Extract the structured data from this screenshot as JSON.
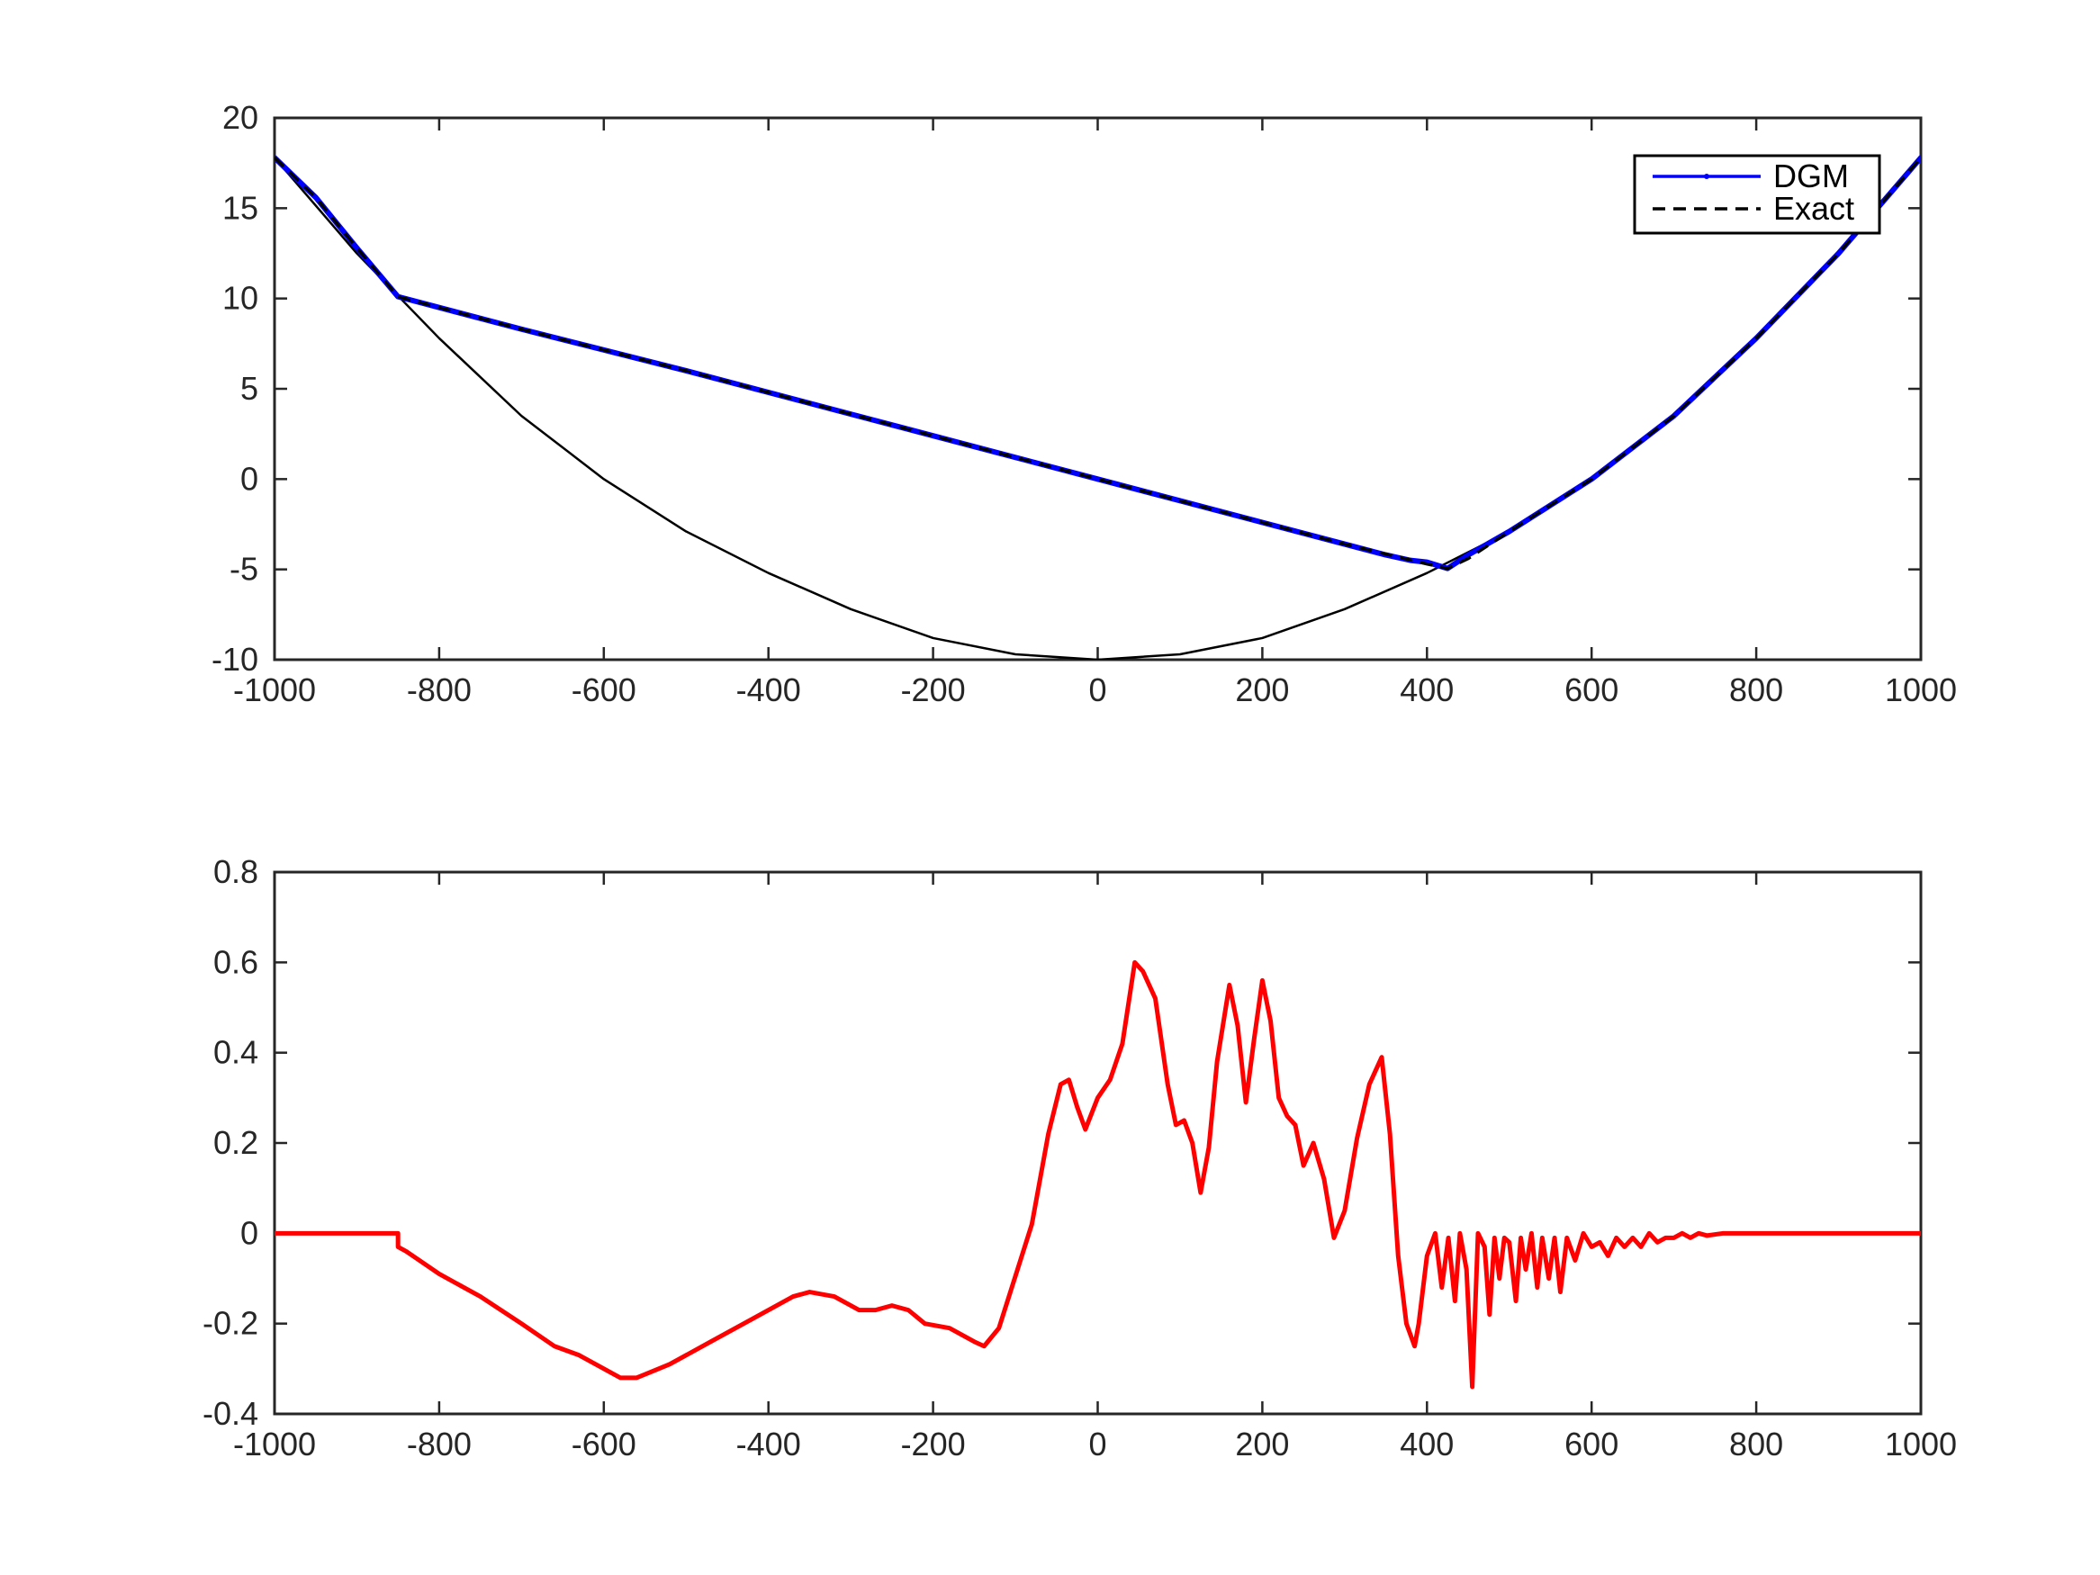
{
  "chart_data": [
    {
      "type": "line",
      "xlim": [
        -1000,
        1000
      ],
      "ylim": [
        -10,
        20
      ],
      "xticks": [
        "-1000",
        "-800",
        "-600",
        "-400",
        "-200",
        "0",
        "200",
        "400",
        "600",
        "800",
        "1000"
      ],
      "yticks": [
        "-10",
        "-5",
        "0",
        "5",
        "10",
        "15",
        "20"
      ],
      "xtick_values": [
        -1000,
        -800,
        -600,
        -400,
        -200,
        0,
        200,
        400,
        600,
        800,
        1000
      ],
      "ytick_values": [
        -10,
        -5,
        0,
        5,
        10,
        15,
        20
      ],
      "grid": false,
      "legend": {
        "location": "top-right",
        "entries": [
          "DGM",
          "Exact"
        ]
      },
      "series": [
        {
          "name": "DGM",
          "color": "#0000ff",
          "style": "solid",
          "x": [
            -1000,
            -950,
            -900,
            -850,
            -700,
            -500,
            -300,
            -100,
            0,
            100,
            200,
            300,
            350,
            380,
            400,
            425,
            450,
            500,
            600,
            700,
            800,
            900,
            1000
          ],
          "y": [
            17.8,
            15.6,
            12.8,
            10.1,
            8.3,
            6.0,
            3.6,
            1.2,
            0.0,
            -1.2,
            -2.4,
            -3.6,
            -4.2,
            -4.5,
            -4.6,
            -4.95,
            -4.2,
            -2.9,
            0.0,
            3.5,
            7.8,
            12.5,
            17.8
          ]
        },
        {
          "name": "Exact",
          "color": "#000000",
          "style": "dashed",
          "x": [
            -1000,
            -950,
            -900,
            -850,
            -700,
            -500,
            -300,
            -100,
            0,
            100,
            200,
            300,
            400,
            425,
            450,
            500,
            600,
            700,
            800,
            900,
            1000
          ],
          "y": [
            17.8,
            15.6,
            12.8,
            10.1,
            8.3,
            6.0,
            3.6,
            1.2,
            0.0,
            -1.2,
            -2.4,
            -3.6,
            -4.7,
            -4.95,
            -4.4,
            -2.9,
            0.0,
            3.5,
            7.8,
            12.5,
            17.8
          ]
        },
        {
          "color": "#000000",
          "style": "thin-solid",
          "x": [
            -1000,
            -900,
            -800,
            -700,
            -600,
            -500,
            -400,
            -300,
            -200,
            -100,
            0,
            100,
            200,
            300,
            400,
            500,
            600,
            700,
            800,
            900,
            1000
          ],
          "y": [
            17.8,
            12.5,
            7.8,
            3.5,
            0.0,
            -2.9,
            -5.2,
            -7.2,
            -8.8,
            -9.7,
            -10.0,
            -9.7,
            -8.8,
            -7.2,
            -5.2,
            -2.9,
            0.0,
            3.5,
            7.8,
            12.5,
            17.8
          ]
        }
      ]
    },
    {
      "type": "line",
      "xlim": [
        -1000,
        1000
      ],
      "ylim": [
        -0.4,
        0.8
      ],
      "xticks": [
        "-1000",
        "-800",
        "-600",
        "-400",
        "-200",
        "0",
        "200",
        "400",
        "600",
        "800",
        "1000"
      ],
      "yticks": [
        "-0.4",
        "-0.2",
        "0",
        "0.2",
        "0.4",
        "0.6",
        "0.8"
      ],
      "xtick_values": [
        -1000,
        -800,
        -600,
        -400,
        -200,
        0,
        200,
        400,
        600,
        800,
        1000
      ],
      "ytick_values": [
        -0.4,
        -0.2,
        0,
        0.2,
        0.4,
        0.6,
        0.8
      ],
      "grid": false,
      "series": [
        {
          "color": "#ff0000",
          "style": "solid",
          "x": [
            -1000,
            -850,
            -850,
            -840,
            -800,
            -750,
            -700,
            -660,
            -630,
            -600,
            -580,
            -560,
            -520,
            -470,
            -420,
            -370,
            -350,
            -320,
            -290,
            -270,
            -250,
            -230,
            -210,
            -180,
            -150,
            -138,
            -120,
            -80,
            -60,
            -45,
            -35,
            -25,
            -15,
            0,
            15,
            30,
            45,
            55,
            70,
            85,
            95,
            105,
            115,
            125,
            135,
            145,
            160,
            170,
            180,
            190,
            200,
            210,
            220,
            230,
            240,
            250,
            262,
            275,
            287,
            300,
            315,
            330,
            345,
            355,
            365,
            375,
            385,
            390,
            400,
            410,
            418,
            426,
            434,
            440,
            448,
            455,
            462,
            470,
            476,
            482,
            488,
            494,
            500,
            508,
            514,
            520,
            527,
            534,
            540,
            548,
            555,
            562,
            570,
            580,
            590,
            600,
            610,
            620,
            630,
            640,
            650,
            660,
            670,
            680,
            690,
            700,
            710,
            720,
            730,
            740,
            760,
            780,
            800,
            850,
            900,
            1000
          ],
          "y": [
            0.0,
            0.0,
            -0.03,
            -0.04,
            -0.09,
            -0.14,
            -0.2,
            -0.25,
            -0.27,
            -0.3,
            -0.32,
            -0.32,
            -0.29,
            -0.24,
            -0.19,
            -0.14,
            -0.13,
            -0.14,
            -0.17,
            -0.17,
            -0.16,
            -0.17,
            -0.2,
            -0.21,
            -0.24,
            -0.25,
            -0.21,
            0.02,
            0.22,
            0.33,
            0.34,
            0.28,
            0.23,
            0.3,
            0.34,
            0.42,
            0.6,
            0.58,
            0.52,
            0.33,
            0.24,
            0.25,
            0.2,
            0.09,
            0.19,
            0.38,
            0.55,
            0.46,
            0.29,
            0.43,
            0.56,
            0.47,
            0.3,
            0.26,
            0.24,
            0.15,
            0.2,
            0.12,
            -0.01,
            0.05,
            0.21,
            0.33,
            0.39,
            0.22,
            -0.05,
            -0.2,
            -0.25,
            -0.2,
            -0.05,
            0.0,
            -0.12,
            -0.01,
            -0.15,
            0.0,
            -0.08,
            -0.34,
            0.0,
            -0.03,
            -0.18,
            -0.01,
            -0.1,
            -0.01,
            -0.02,
            -0.15,
            -0.01,
            -0.08,
            0.0,
            -0.12,
            -0.01,
            -0.1,
            -0.01,
            -0.13,
            -0.01,
            -0.06,
            0.0,
            -0.03,
            -0.02,
            -0.05,
            -0.01,
            -0.03,
            -0.01,
            -0.03,
            0.0,
            -0.02,
            -0.01,
            -0.01,
            0.0,
            -0.01,
            0.0,
            -0.005,
            0.0,
            0.0,
            0.0,
            0.0,
            0.0,
            0.0
          ]
        }
      ]
    }
  ]
}
